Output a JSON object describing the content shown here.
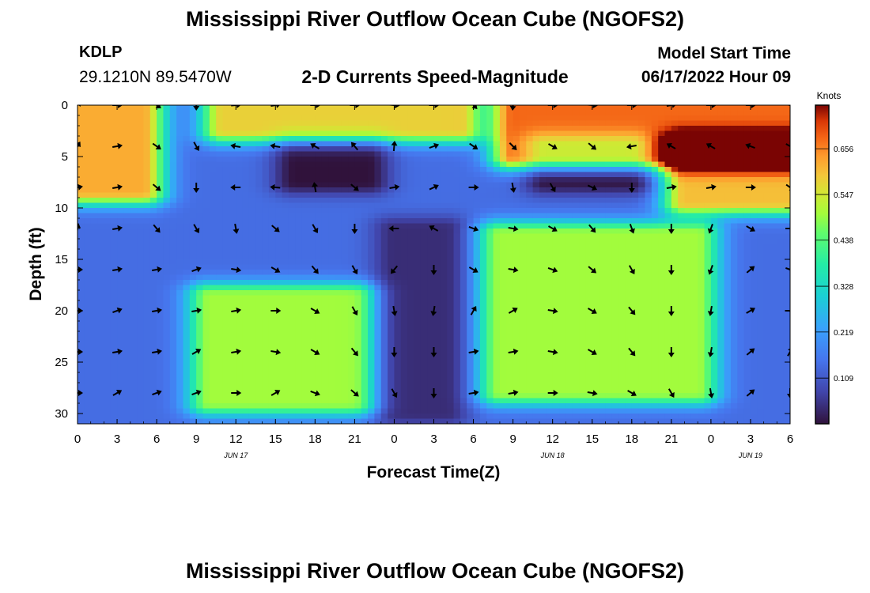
{
  "page": {
    "title": "Mississippi River Outflow Ocean Cube (NGOFS2)",
    "title_repeat": "Mississippi River Outflow Ocean Cube (NGOFS2)"
  },
  "station": {
    "id": "KDLP",
    "coords": "29.1210N  89.5470W"
  },
  "model": {
    "start_label": "Model Start Time",
    "start_value": "06/17/2022 Hour 09"
  },
  "chart_data": {
    "type": "heatmap",
    "subtitle": "2-D Currents Speed-Magnitude",
    "xlabel": "Forecast Time(Z)",
    "ylabel": "Depth (ft)",
    "x_unit": "hours since 2022-06-17 00Z",
    "xlim": [
      0,
      54
    ],
    "ylim": [
      0,
      31
    ],
    "y_inverted": true,
    "x_ticks": [
      0,
      3,
      6,
      9,
      12,
      15,
      18,
      21,
      24,
      27,
      30,
      33,
      36,
      39,
      42,
      45,
      48,
      51,
      54
    ],
    "x_tick_labels": [
      "0",
      "3",
      "6",
      "9",
      "12",
      "15",
      "18",
      "21",
      "0",
      "3",
      "6",
      "9",
      "12",
      "15",
      "18",
      "21",
      "0",
      "3",
      "6"
    ],
    "y_ticks": [
      0,
      5,
      10,
      15,
      20,
      25,
      30
    ],
    "y_tick_labels": [
      "0",
      "5",
      "10",
      "15",
      "20",
      "25",
      "30"
    ],
    "date_labels": [
      {
        "text": "JUN 17",
        "x": 12
      },
      {
        "text": "JUN 18",
        "x": 36
      },
      {
        "text": "JUN 19",
        "x": 51
      }
    ],
    "colorbar": {
      "title": "Knots",
      "min": 0.0,
      "max": 0.76,
      "ticks": [
        0.109,
        0.219,
        0.328,
        0.438,
        0.547,
        0.656
      ],
      "tick_labels": [
        "0.109",
        "0.219",
        "0.328",
        "0.438",
        "0.547",
        "0.656"
      ]
    },
    "speed_features": [
      {
        "kind": "high",
        "t": [
          0,
          5
        ],
        "d": [
          0,
          8.5
        ],
        "v": 0.62
      },
      {
        "kind": "high",
        "t": [
          11,
          29
        ],
        "d": [
          0,
          2.5
        ],
        "v": 0.58
      },
      {
        "kind": "high",
        "t": [
          33,
          54
        ],
        "d": [
          0,
          5
        ],
        "v": 0.68
      },
      {
        "kind": "high",
        "t": [
          46,
          54
        ],
        "d": [
          4,
          9.5
        ],
        "v": 0.6
      },
      {
        "kind": "low",
        "t": [
          16.5,
          22
        ],
        "d": [
          4,
          7.5
        ],
        "v": 0.0
      },
      {
        "kind": "low",
        "t": [
          35.5,
          42
        ],
        "d": [
          4,
          7.5
        ],
        "v": 0.0
      },
      {
        "kind": "low",
        "t": [
          24,
          28
        ],
        "d": [
          12,
          30
        ],
        "v": 0.04
      },
      {
        "kind": "high",
        "t": [
          10,
          21
        ],
        "d": [
          18.5,
          29
        ],
        "v": 0.5
      },
      {
        "kind": "high",
        "t": [
          32,
          47
        ],
        "d": [
          12.5,
          28
        ],
        "v": 0.5
      }
    ],
    "arrow_times": [
      0,
      3,
      6,
      9,
      12,
      15,
      18,
      21,
      24,
      27,
      30,
      33,
      36,
      39,
      42,
      45,
      48,
      51,
      54
    ],
    "arrow_depths": [
      0,
      4,
      8,
      12,
      16,
      20,
      24,
      28
    ],
    "current_direction_deg": [
      [
        45,
        90,
        125,
        180,
        85,
        80,
        90,
        90,
        95,
        90,
        135,
        185,
        90,
        95,
        90,
        80,
        90,
        90,
        100
      ],
      [
        30,
        80,
        125,
        150,
        280,
        280,
        300,
        320,
        5,
        70,
        125,
        135,
        120,
        130,
        260,
        300,
        300,
        290,
        120
      ],
      [
        80,
        80,
        130,
        180,
        270,
        275,
        350,
        130,
        80,
        65,
        90,
        170,
        150,
        115,
        180,
        80,
        80,
        90,
        125
      ],
      [
        10,
        80,
        140,
        150,
        170,
        130,
        150,
        180,
        270,
        300,
        110,
        100,
        120,
        140,
        160,
        180,
        200,
        120,
        90
      ],
      [
        90,
        80,
        80,
        70,
        100,
        120,
        140,
        150,
        220,
        180,
        120,
        100,
        110,
        130,
        150,
        180,
        200,
        50,
        110
      ],
      [
        90,
        70,
        80,
        80,
        80,
        90,
        120,
        150,
        170,
        190,
        30,
        60,
        100,
        120,
        140,
        180,
        190,
        60,
        90
      ],
      [
        90,
        80,
        80,
        60,
        80,
        100,
        120,
        140,
        180,
        180,
        80,
        80,
        100,
        120,
        140,
        180,
        190,
        50,
        30
      ],
      [
        90,
        60,
        70,
        70,
        90,
        60,
        110,
        130,
        150,
        180,
        80,
        80,
        90,
        100,
        120,
        150,
        170,
        50,
        180
      ]
    ]
  }
}
